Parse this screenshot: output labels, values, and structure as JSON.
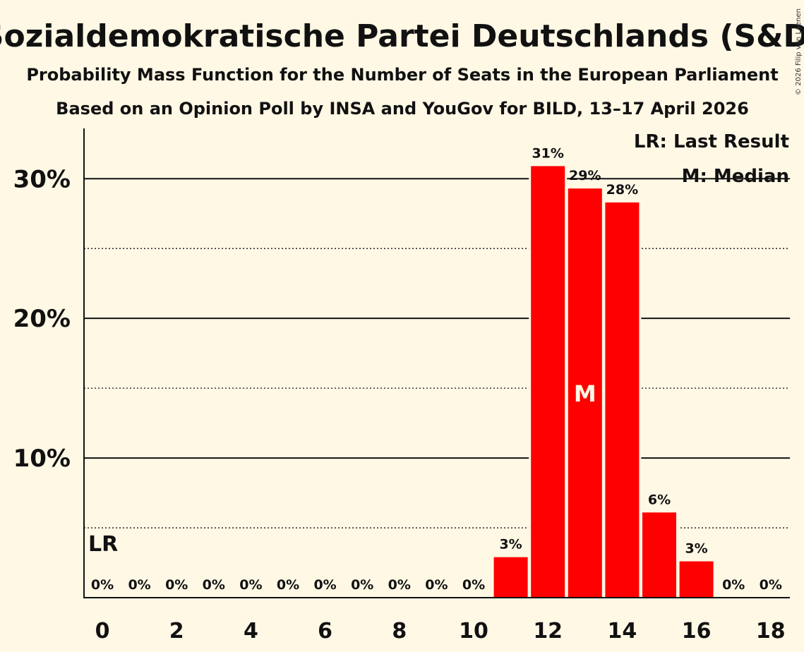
{
  "chart_data": {
    "type": "bar",
    "title": "Sozialdemokratische Partei Deutschlands (S&D)",
    "subtitle": "Probability Mass Function for the Number of Seats in the European Parliament",
    "subtitle2": "Based on an Opinion Poll by INSA and YouGov for BILD, 13–17 April 2026",
    "copyright": "© 2026 Filip van Laenen",
    "categories": [
      0,
      1,
      2,
      3,
      4,
      5,
      6,
      7,
      8,
      9,
      10,
      11,
      12,
      13,
      14,
      15,
      16,
      17,
      18
    ],
    "values": [
      0,
      0,
      0,
      0,
      0,
      0,
      0,
      0,
      0,
      0,
      0,
      2.9,
      30.9,
      29.3,
      28.3,
      6.1,
      2.6,
      0,
      0
    ],
    "data_labels": [
      "0%",
      "0%",
      "0%",
      "0%",
      "0%",
      "0%",
      "0%",
      "0%",
      "0%",
      "0%",
      "0%",
      "3%",
      "31%",
      "29%",
      "28%",
      "6%",
      "3%",
      "0%",
      "0%"
    ],
    "xtick_labels": [
      "0",
      "2",
      "4",
      "6",
      "8",
      "10",
      "12",
      "14",
      "16",
      "18"
    ],
    "ytick_labels": [
      "10%",
      "20%",
      "30%"
    ],
    "ytick_values": [
      10,
      20,
      30
    ],
    "minor_gridlines": [
      5,
      15,
      25
    ],
    "ylim": [
      0,
      33.6
    ],
    "bar_color": "#FF0000",
    "median_seat": 13,
    "median_marker": "M",
    "last_result_seat": 0,
    "last_result_marker": "LR",
    "legend": [
      "LR: Last Result",
      "M: Median"
    ],
    "legend_position": "top-right"
  }
}
